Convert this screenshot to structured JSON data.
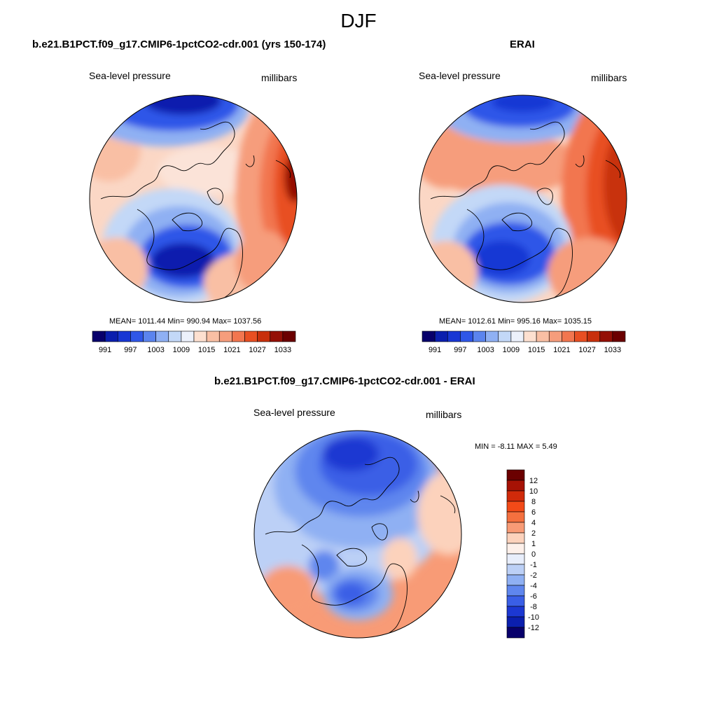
{
  "figure": {
    "season": "DJF"
  },
  "panels": [
    {
      "title": "b.e21.B1PCT.f09_g17.CMIP6-1pctCO2-cdr.001 (yrs 150-174)",
      "variable": "Sea-level pressure",
      "units": "millibars",
      "stats": "MEAN= 1011.44  Min= 990.94  Max= 1037.56",
      "colorbar": {
        "colors": [
          "#08006b",
          "#0b1fae",
          "#1837d4",
          "#2f57e8",
          "#5b84ee",
          "#8fb0f3",
          "#c3d8f7",
          "#ecf1fb",
          "#fde0d0",
          "#f9bfa4",
          "#f69d7c",
          "#f2764f",
          "#e84f22",
          "#c8300c",
          "#941006",
          "#6b0000"
        ],
        "tick_labels": [
          "991",
          "997",
          "1003",
          "1009",
          "1015",
          "1021",
          "1027",
          "1033"
        ]
      }
    },
    {
      "title": "ERAI",
      "variable": "Sea-level pressure",
      "units": "millibars",
      "stats": "MEAN= 1012.61  Min= 995.16  Max= 1035.15",
      "colorbar": {
        "colors": [
          "#08006b",
          "#0b1fae",
          "#1837d4",
          "#2f57e8",
          "#5b84ee",
          "#8fb0f3",
          "#c3d8f7",
          "#ecf1fb",
          "#fde0d0",
          "#f9bfa4",
          "#f69d7c",
          "#f2764f",
          "#e84f22",
          "#c8300c",
          "#941006",
          "#6b0000"
        ],
        "tick_labels": [
          "991",
          "997",
          "1003",
          "1009",
          "1015",
          "1021",
          "1027",
          "1033"
        ]
      }
    },
    {
      "title": "b.e21.B1PCT.f09_g17.CMIP6-1pctCO2-cdr.001 - ERAI",
      "variable": "Sea-level pressure",
      "units": "millibars",
      "stats": "MIN =  -8.11 MAX =   5.49",
      "colorbar": {
        "colors": [
          "#6b0000",
          "#a61205",
          "#d02a0a",
          "#f24a18",
          "#f4703f",
          "#f89b76",
          "#fcd2bc",
          "#fdf0ea",
          "#e8eefb",
          "#bcd0f6",
          "#8fb0f3",
          "#5f86ee",
          "#3a5fe6",
          "#1c38d2",
          "#0b1fae",
          "#08006b"
        ],
        "tick_labels": [
          "12",
          "10",
          "8",
          "6",
          "4",
          "2",
          "1",
          "0",
          "-1",
          "-2",
          "-4",
          "-6",
          "-8",
          "-10",
          "-12"
        ]
      }
    }
  ]
}
